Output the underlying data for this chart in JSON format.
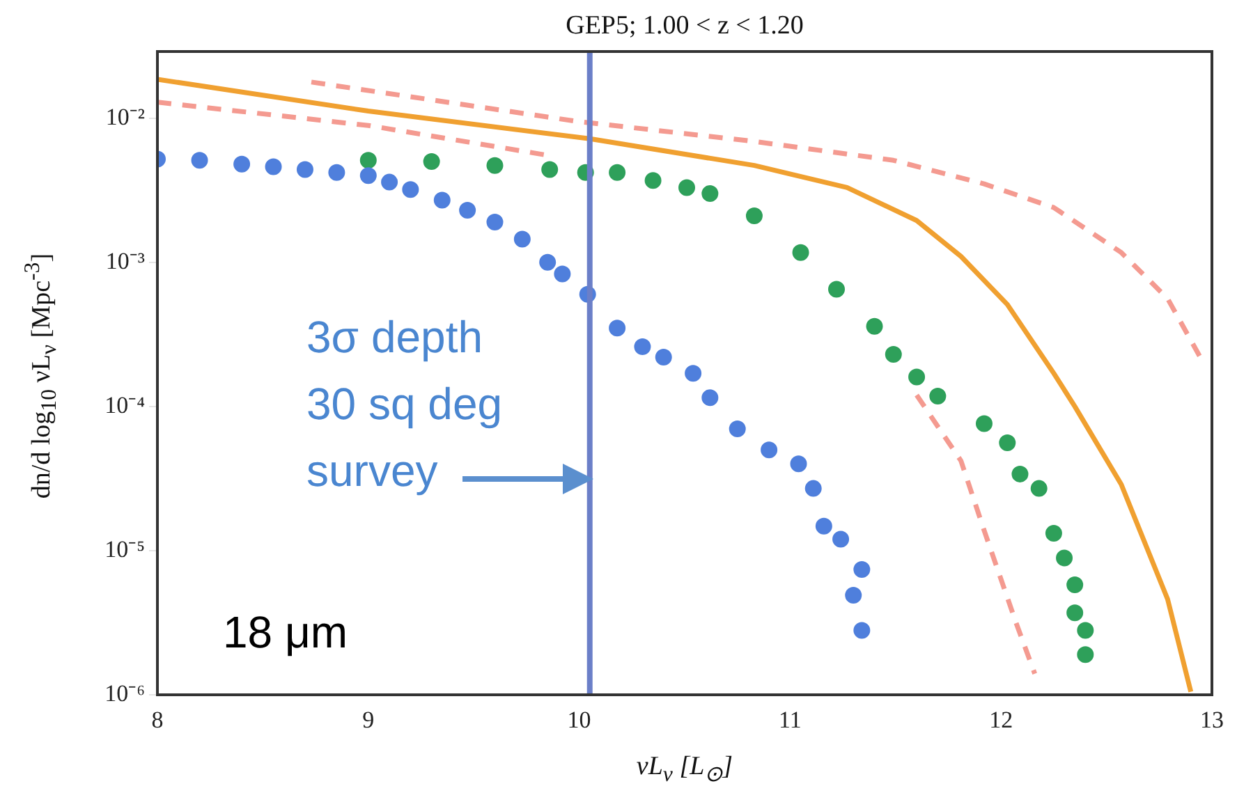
{
  "chart_data": {
    "type": "scatter",
    "title": "GEP5; 1.00 < z < 1.20",
    "xlabel": "νL$_{ν}$ [L$_{⊙}$]",
    "ylabel": "dn/d log$_{10}$ νL$_{ν}$ [Mpc$^{-3}$]",
    "log": "y",
    "grid": false,
    "legend": false,
    "xlim": [
      8,
      13
    ],
    "xticks": [
      8,
      9,
      10,
      11,
      12,
      13
    ],
    "ylim": [
      1e-06,
      0.029
    ],
    "yticks": [
      {
        "value": 1e-06,
        "label": "10⁻⁶"
      },
      {
        "value": 1e-05,
        "label": "10⁻⁵"
      },
      {
        "value": 0.0001,
        "label": "10⁻⁴"
      },
      {
        "value": 0.001,
        "label": "10⁻³"
      },
      {
        "value": 0.01,
        "label": "10⁻²"
      }
    ],
    "ref_lines": [
      {
        "axis": "x",
        "value": 10.05,
        "color": "#6b7fc8"
      }
    ],
    "annotations": [
      "3σ depth\n30 sq deg\nsurvey",
      "18 μm"
    ],
    "series": [
      {
        "marker": "circle",
        "color": "#4f7fdc",
        "x": [
          8.0,
          8.2,
          8.4,
          8.55,
          8.7,
          8.85,
          9.0,
          9.1,
          9.2,
          9.35,
          9.47,
          9.6,
          9.73,
          9.85,
          9.92,
          10.04,
          10.18,
          10.3,
          10.4,
          10.54,
          10.62,
          10.75,
          10.9,
          11.04,
          11.11,
          11.16,
          11.24,
          11.34,
          11.3,
          11.34
        ],
        "values": [
          0.0052,
          0.0051,
          0.0048,
          0.0046,
          0.0044,
          0.0042,
          0.004,
          0.0036,
          0.0032,
          0.0027,
          0.0023,
          0.0019,
          0.00145,
          0.001,
          0.00083,
          0.0006,
          0.00035,
          0.00026,
          0.00022,
          0.00017,
          0.000115,
          7e-05,
          5e-05,
          4e-05,
          2.7e-05,
          1.48e-05,
          1.2e-05,
          7.4e-06,
          4.9e-06,
          2.8e-06
        ]
      },
      {
        "marker": "circle",
        "color": "#2ea05a",
        "x": [
          9.0,
          9.3,
          9.6,
          9.86,
          10.03,
          10.18,
          10.35,
          10.51,
          10.62,
          10.83,
          11.05,
          11.22,
          11.4,
          11.49,
          11.6,
          11.7,
          11.92,
          12.03,
          12.09,
          12.18,
          12.25,
          12.3,
          12.35,
          12.35,
          12.4,
          12.4
        ],
        "values": [
          0.0051,
          0.005,
          0.0047,
          0.0044,
          0.0042,
          0.0042,
          0.0037,
          0.0033,
          0.003,
          0.0021,
          0.00117,
          0.00065,
          0.00036,
          0.00023,
          0.00016,
          0.000118,
          7.6e-05,
          5.6e-05,
          3.4e-05,
          2.7e-05,
          1.32e-05,
          8.9e-06,
          5.8e-06,
          3.7e-06,
          2.8e-06,
          1.9e-06
        ]
      },
      {
        "type": "line",
        "marker": "none",
        "color": "#f0a030",
        "line_style": "solid",
        "x": [
          8.0,
          9.0,
          10.05,
          10.83,
          11.27,
          11.6,
          11.81,
          12.03,
          12.25,
          12.35,
          12.57,
          12.79,
          12.9
        ],
        "values": [
          0.0186,
          0.0112,
          0.0072,
          0.0047,
          0.0033,
          0.00195,
          0.0011,
          0.00051,
          0.00017,
          0.0001,
          2.88e-05,
          4.6e-06,
          1.05e-06
        ]
      },
      {
        "type": "line",
        "marker": "none",
        "color": "#f49a90",
        "line_style": "dashed",
        "x": [
          8.73,
          9.99,
          10.83,
          11.49,
          11.92,
          12.25,
          12.57,
          12.79,
          12.96
        ],
        "values": [
          0.0178,
          0.0095,
          0.0069,
          0.0051,
          0.0035,
          0.0024,
          0.00117,
          0.00056,
          0.0002
        ]
      },
      {
        "type": "line",
        "marker": "none",
        "color": "#f49a90",
        "line_style": "dashed",
        "x": [
          8.0,
          9.0,
          9.86,
          10.7,
          11.6,
          11.81,
          11.92,
          12.07,
          12.16
        ],
        "values": [
          0.0129,
          0.0089,
          0.0055,
          null,
          0.00012,
          4.2e-05,
          1.38e-05,
          3.2e-06,
          1.4e-06
        ]
      }
    ]
  }
}
